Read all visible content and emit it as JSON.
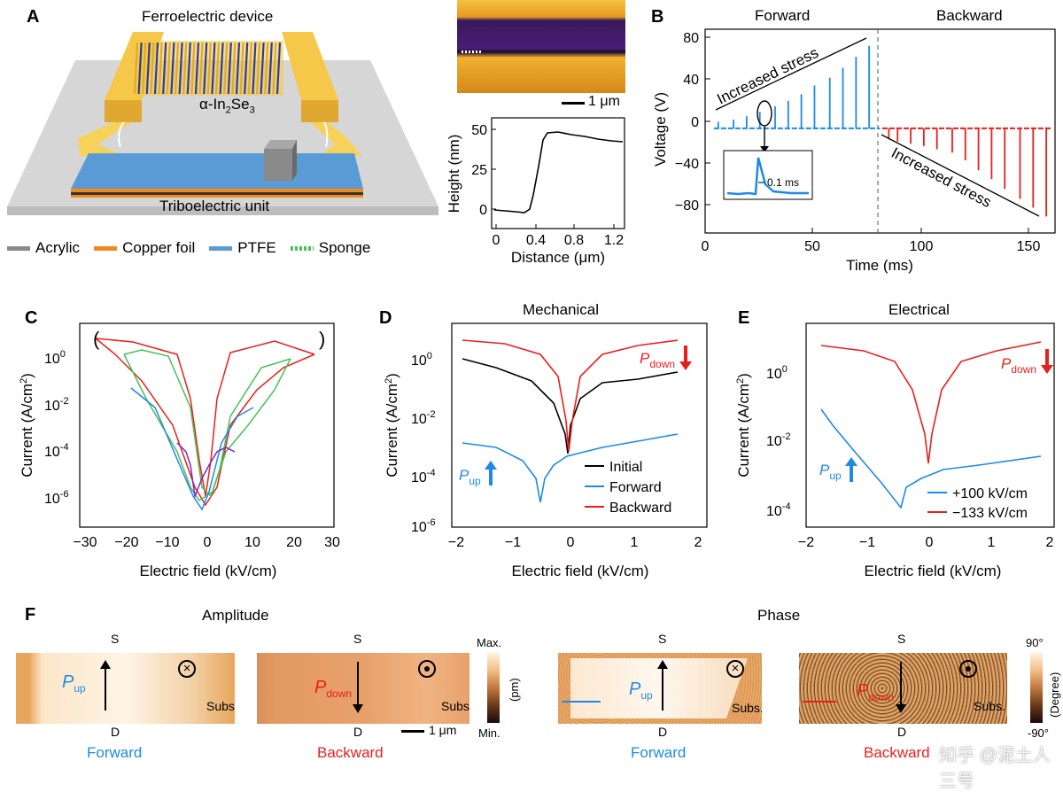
{
  "panel_a": {
    "label": "A",
    "device_title": "Ferroelectric device",
    "material": "α-In",
    "material_sub1": "2",
    "material_mid": "Se",
    "material_sub2": "3",
    "tribo_label": "Triboelectric unit",
    "legend": [
      {
        "label": "Acrylic",
        "color": "#8a8a8a"
      },
      {
        "label": "Copper foil",
        "color": "#f08a1c"
      },
      {
        "label": "PTFE",
        "color": "#5b9bd5"
      },
      {
        "label": "Sponge",
        "color": "#46c05a"
      }
    ],
    "afm_scale": "1 μm",
    "height_profile": {
      "xlabel": "Distance (μm)",
      "ylabel": "Height (nm)",
      "xticks": [
        "0",
        "0.4",
        "0.8",
        "1.2"
      ],
      "yticks": [
        "0",
        "25",
        "50"
      ]
    }
  },
  "panel_b": {
    "label": "B",
    "forward": "Forward",
    "backward": "Backward",
    "xlabel": "Time (ms)",
    "ylabel": "Voltage (V)",
    "xticks": [
      "0",
      "50",
      "100",
      "150"
    ],
    "yticks": [
      "80",
      "40",
      "0",
      "−40",
      "−80"
    ],
    "stress_top": "Increased  stress",
    "stress_bottom": "Increased stress",
    "inset_label": "0.1 ms"
  },
  "panel_c": {
    "label": "C",
    "xlabel": "Electric field (kV/cm)",
    "ylabel": "Current (A/cm",
    "ylabel_sup": "2",
    "ylabel_end": ")",
    "xticks": [
      "−30",
      "−20",
      "−10",
      "0",
      "10",
      "20",
      "30"
    ],
    "yticks_base": "10",
    "yticks_exp": [
      "0",
      "-2",
      "-4",
      "-6"
    ]
  },
  "panel_d": {
    "label": "D",
    "title": "Mechanical",
    "xlabel": "Electric field (kV/cm)",
    "ylabel": "Current (A/cm",
    "ylabel_sup": "2",
    "ylabel_end": ")",
    "xticks": [
      "−2",
      "−1",
      "0",
      "1",
      "2"
    ],
    "yticks_exp": [
      "0",
      "-2",
      "-4",
      "-6"
    ],
    "legend": [
      "Initial",
      "Forward",
      "Backward"
    ],
    "p_down": "P",
    "p_down_sub": "down",
    "p_up": "P",
    "p_up_sub": "up"
  },
  "panel_e": {
    "label": "E",
    "title": "Electrical",
    "xlabel": "Electric field (kV/cm)",
    "ylabel": "Current (A/cm",
    "ylabel_sup": "2",
    "ylabel_end": ")",
    "xticks": [
      "−2",
      "−1",
      "0",
      "1",
      "2"
    ],
    "yticks_exp": [
      "0",
      "-2",
      "-4"
    ],
    "legend": [
      "+100 kV/cm",
      "−133 kV/cm"
    ],
    "p_down": "P",
    "p_down_sub": "down",
    "p_up": "P",
    "p_up_sub": "up"
  },
  "panel_f": {
    "label": "F",
    "amplitude": "Amplitude",
    "phase": "Phase",
    "s": "S",
    "d": "D",
    "subs": "Subs.",
    "scale": "1 μm",
    "amp_max": "Max.",
    "amp_min": "Min.",
    "amp_unit": "(pm)",
    "phase_max": "90°",
    "phase_min": "-90°",
    "phase_unit": "(Degree)",
    "forward": "Forward",
    "backward": "Backward",
    "p": "P",
    "up": "up",
    "down": "down",
    "watermark": "知乎 @泥土人三号"
  },
  "chart_data": [
    {
      "type": "line",
      "panel": "B",
      "xlabel": "Time (ms)",
      "ylabel": "Voltage (V)",
      "xlim": [
        0,
        160
      ],
      "ylim": [
        -95,
        90
      ],
      "series": [
        {
          "name": "Forward",
          "color": "#1e8ae6",
          "x": [
            6,
            13,
            19,
            25,
            32,
            38,
            44,
            50,
            57,
            63,
            69,
            75
          ],
          "y": [
            6,
            8,
            11,
            15,
            20,
            25,
            31,
            39,
            46,
            55,
            65,
            75
          ]
        },
        {
          "name": "Backward",
          "color": "#e8201c",
          "x": [
            84,
            88,
            94,
            100,
            106,
            113,
            119,
            125,
            131,
            137,
            144,
            150,
            156
          ],
          "y": [
            -10,
            -12,
            -14,
            -16,
            -19,
            -22,
            -29,
            -38,
            -46,
            -55,
            -64,
            -72,
            -80
          ]
        }
      ]
    },
    {
      "type": "line",
      "panel": "D",
      "xlabel": "Electric field (kV/cm)",
      "ylabel": "Current (A/cm2)",
      "xlim": [
        -2,
        2
      ],
      "ylog_range": [
        -6,
        1
      ],
      "series": [
        {
          "name": "Initial",
          "color": "#000000",
          "x": [
            -1.7,
            -1.2,
            -0.8,
            -0.4,
            -0.1,
            0,
            0.1,
            0.4,
            0.8,
            1.2,
            1.7
          ],
          "y": [
            1.2,
            0.6,
            0.3,
            0.08,
            0.01,
            0.0005,
            0.01,
            0.04,
            0.08,
            0.2,
            0.4
          ]
        },
        {
          "name": "Forward",
          "color": "#1e8ae6",
          "x": [
            -1.7,
            -1.2,
            -0.8,
            -0.6,
            -0.5,
            -0.4,
            -0.2,
            0,
            0.5,
            1.0,
            1.7
          ],
          "y": [
            0.0009,
            0.0006,
            0.0003,
            8e-05,
            6e-06,
            8e-05,
            0.0003,
            0.0006,
            0.001,
            0.0013,
            0.0025
          ]
        },
        {
          "name": "Backward",
          "color": "#e8201c",
          "x": [
            -1.7,
            -1.2,
            -0.8,
            -0.4,
            -0.1,
            0,
            0.1,
            0.4,
            0.8,
            1.2,
            1.7
          ],
          "y": [
            5,
            3.5,
            2.5,
            1,
            0.1,
            0.0007,
            0.1,
            0.9,
            2,
            3.5,
            5
          ]
        }
      ]
    },
    {
      "type": "line",
      "panel": "E",
      "xlabel": "Electric field (kV/cm)",
      "ylabel": "Current (A/cm2)",
      "xlim": [
        -2,
        2
      ],
      "ylog_range": [
        -4.3,
        1.3
      ],
      "series": [
        {
          "name": "+100 kV/cm",
          "color": "#1e8ae6",
          "x": [
            -1.7,
            -1.3,
            -1.0,
            -0.6,
            -0.45,
            -0.3,
            0,
            0.5,
            1.0,
            1.7
          ],
          "y": [
            0.08,
            0.015,
            0.004,
            0.0006,
            0.00012,
            0.0004,
            0.0007,
            0.0012,
            0.0018,
            0.003
          ]
        },
        {
          "name": "−133 kV/cm",
          "color": "#e8201c",
          "x": [
            -1.7,
            -1.2,
            -0.8,
            -0.4,
            -0.1,
            0,
            0.1,
            0.4,
            0.8,
            1.2,
            1.7
          ],
          "y": [
            5,
            3.5,
            2.5,
            1.2,
            0.2,
            0.0025,
            0.2,
            1.2,
            2.5,
            4,
            7
          ]
        }
      ]
    }
  ]
}
